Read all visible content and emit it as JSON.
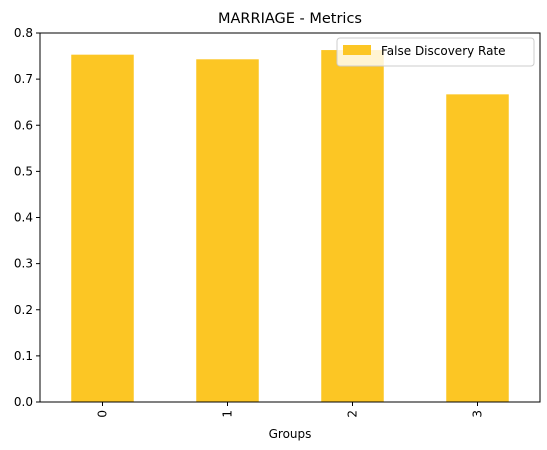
{
  "chart_data": {
    "type": "bar",
    "title": "MARRIAGE - Metrics",
    "xlabel": "Groups",
    "ylabel": "",
    "categories": [
      "0",
      "1",
      "2",
      "3"
    ],
    "series": [
      {
        "name": "False Discovery Rate",
        "values": [
          0.753,
          0.743,
          0.763,
          0.667
        ],
        "color": "#fcc624"
      }
    ],
    "ylim": [
      0,
      0.8
    ],
    "yticks": [
      "0.0",
      "0.1",
      "0.2",
      "0.3",
      "0.4",
      "0.5",
      "0.6",
      "0.7",
      "0.8"
    ],
    "ytick_values": [
      0,
      0.1,
      0.2,
      0.3,
      0.4,
      0.5,
      0.6,
      0.7,
      0.8
    ],
    "grid": false,
    "legend_position": "top-right"
  }
}
